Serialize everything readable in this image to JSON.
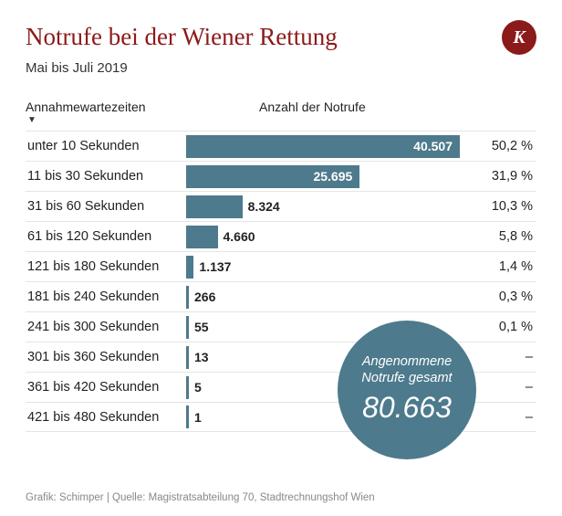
{
  "title": "Notrufe bei der Wiener Rettung",
  "subtitle": "Mai bis Juli 2019",
  "logo_letter": "K",
  "columns": {
    "category": "Annahmewartezeiten",
    "value": "Anzahl der Notrufe"
  },
  "chart": {
    "type": "bar",
    "bar_color": "#4d7a8c",
    "background_color": "#ffffff",
    "grid_color": "#e5e5e5",
    "max_value": 40507,
    "bar_area_width": 300,
    "inside_label_threshold": 20000,
    "rows": [
      {
        "category": "unter 10 Sekunden",
        "value": 40507,
        "value_label": "40.507",
        "pct": "50,2 %"
      },
      {
        "category": "11 bis 30 Sekunden",
        "value": 25695,
        "value_label": "25.695",
        "pct": "31,9 %"
      },
      {
        "category": "31 bis 60 Sekunden",
        "value": 8324,
        "value_label": "8.324",
        "pct": "10,3 %"
      },
      {
        "category": "61 bis 120 Sekunden",
        "value": 4660,
        "value_label": "4.660",
        "pct": "5,8 %"
      },
      {
        "category": "121 bis 180 Sekunden",
        "value": 1137,
        "value_label": "1.137",
        "pct": "1,4 %"
      },
      {
        "category": "181 bis 240 Sekunden",
        "value": 266,
        "value_label": "266",
        "pct": "0,3 %"
      },
      {
        "category": "241 bis 300 Sekunden",
        "value": 55,
        "value_label": "55",
        "pct": "0,1 %"
      },
      {
        "category": "301 bis 360 Sekunden",
        "value": 13,
        "value_label": "13",
        "pct": "–"
      },
      {
        "category": "361 bis 420 Sekunden",
        "value": 5,
        "value_label": "5",
        "pct": "–"
      },
      {
        "category": "421 bis 480 Sekunden",
        "value": 1,
        "value_label": "1",
        "pct": "–"
      }
    ]
  },
  "total": {
    "label1": "Angenommene",
    "label2": "Notrufe gesamt",
    "value": "80.663"
  },
  "footer": "Grafik: Schimper | Quelle: Magistratsabteilung 70, Stadtrechnungshof Wien",
  "colors": {
    "title": "#8b1a1a",
    "logo_bg": "#8b1a1a",
    "text": "#222222",
    "footer": "#888888"
  }
}
